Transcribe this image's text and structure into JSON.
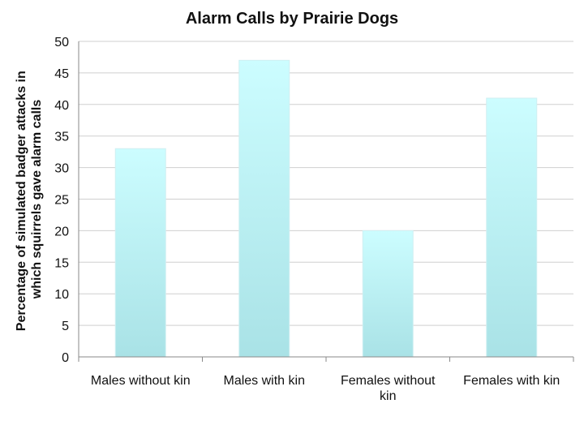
{
  "chart_data": {
    "type": "bar",
    "title": "Alarm Calls by Prairie Dogs",
    "ylabel_lines": [
      "Percentage of simulated badger attacks in",
      "which squirrels gave alarm calls"
    ],
    "xlabel": "",
    "categories": [
      "Males without kin",
      "Males with kin",
      "Females without kin",
      "Females with kin"
    ],
    "category_lines": [
      [
        "Males without kin"
      ],
      [
        "Males with kin"
      ],
      [
        "Females without",
        "kin"
      ],
      [
        "Females with kin"
      ]
    ],
    "values": [
      33,
      47,
      20,
      41
    ],
    "ylim": [
      0,
      50
    ],
    "yticks": [
      "0",
      "5",
      "10",
      "15",
      "20",
      "25",
      "30",
      "35",
      "40",
      "45",
      "50"
    ],
    "grid": true,
    "legend": "none",
    "colors": {
      "bar_top": "#ccfdff",
      "bar_bottom": "#a9e2e6",
      "grid": "#cfcfcf"
    }
  }
}
